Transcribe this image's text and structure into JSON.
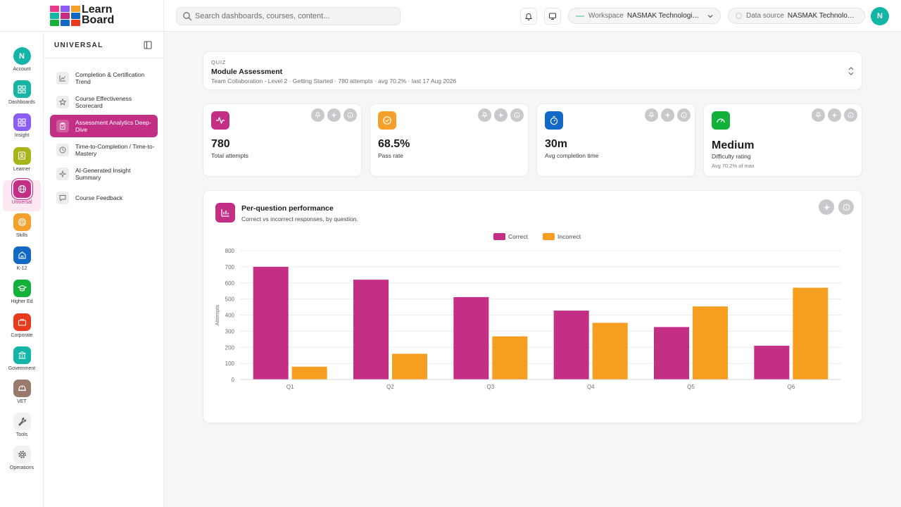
{
  "app": {
    "logo_line1": "Learn",
    "logo_line2": "Board",
    "search_placeholder": "Search dashboards, courses, content...",
    "workspace_label": "Workspace",
    "workspace_value": "NASMAK Technologies Pt...",
    "datasource_label": "Data source",
    "datasource_value": "NASMAK Technologies ...",
    "user_initial": "N",
    "icons": [
      "search-icon",
      "bell-icon",
      "monitor-icon",
      "chevron-down-icon",
      "database-icon"
    ]
  },
  "rail": [
    {
      "label": "Account",
      "color": "#12b5a6",
      "glyph": "N"
    },
    {
      "label": "Dashboards",
      "color": "#18b4a4",
      "glyph": "grid"
    },
    {
      "label": "Insight",
      "color": "#8b5cf6",
      "glyph": "grid"
    },
    {
      "label": "Learner",
      "color": "#a8b51a",
      "glyph": "id"
    },
    {
      "label": "Universal",
      "color": "#c42f86",
      "glyph": "globe",
      "active": true
    },
    {
      "label": "Skills",
      "color": "#f5a02a",
      "glyph": "target"
    },
    {
      "label": "K-12",
      "color": "#1268c2",
      "glyph": "school"
    },
    {
      "label": "Higher Ed",
      "color": "#13b13a",
      "glyph": "cap"
    },
    {
      "label": "Corporate",
      "color": "#ea3a1e",
      "glyph": "briefcase"
    },
    {
      "label": "Government",
      "color": "#12b5a6",
      "glyph": "bank"
    },
    {
      "label": "VET",
      "color": "#9a7a6c",
      "glyph": "helmet"
    },
    {
      "label": "Tools",
      "color": "#f1f1f2",
      "glyph": "wrench"
    },
    {
      "label": "Operations",
      "color": "#f1f1f2",
      "glyph": "gear"
    }
  ],
  "subnav": {
    "title": "UNIVERSAL",
    "items": [
      {
        "label": "Completion & Certification Trend",
        "icon": "trend-chart-icon"
      },
      {
        "label": "Course Effectiveness Scorecard",
        "icon": "star-icon"
      },
      {
        "label": "Assessment Analytics Deep-Dive",
        "icon": "clipboard-check-icon",
        "active": true
      },
      {
        "label": "Time-to-Completion / Time-to-Mastery",
        "icon": "clock-icon"
      },
      {
        "label": "AI-Generated Insight Summary",
        "icon": "sparkle-icon"
      },
      {
        "label": "Course Feedback",
        "icon": "chat-icon"
      }
    ]
  },
  "quiz": {
    "eyebrow": "QUIZ",
    "title": "Module Assessment",
    "subtitle": "Team Collaboration - Level 2 · Getting Started · 780 attempts · avg 70.2% · last 17 Aug 2026"
  },
  "kpis": [
    {
      "value": "780",
      "label": "Total attempts",
      "sub": "",
      "color": "#c42f86",
      "icon": "activity-icon"
    },
    {
      "value": "68.5%",
      "label": "Pass rate",
      "sub": "",
      "color": "#f5a02a",
      "icon": "check-circle-icon"
    },
    {
      "value": "30m",
      "label": "Avg completion time",
      "sub": "",
      "color": "#1268c2",
      "icon": "stopwatch-icon"
    },
    {
      "value": "Medium",
      "label": "Difficulty rating",
      "sub": "Avg 70.2% of max",
      "color": "#13b13a",
      "icon": "gauge-icon"
    }
  ],
  "chart_card": {
    "title": "Per-question performance",
    "subtitle": "Correct vs incorrect responses, by question."
  },
  "chart_data": {
    "type": "bar",
    "categories": [
      "Q1",
      "Q2",
      "Q3",
      "Q4",
      "Q5",
      "Q6"
    ],
    "series": [
      {
        "name": "Correct",
        "color": "#c42f86",
        "values": [
          700,
          620,
          512,
          428,
          326,
          210
        ]
      },
      {
        "name": "Incorrect",
        "color": "#f59e20",
        "values": [
          80,
          160,
          268,
          352,
          454,
          570
        ]
      }
    ],
    "ylabel": "Attempts",
    "ylim": [
      0,
      800
    ],
    "yticks": [
      0,
      100,
      200,
      300,
      400,
      500,
      600,
      700,
      800
    ],
    "grid": true,
    "legend": "top-center"
  }
}
